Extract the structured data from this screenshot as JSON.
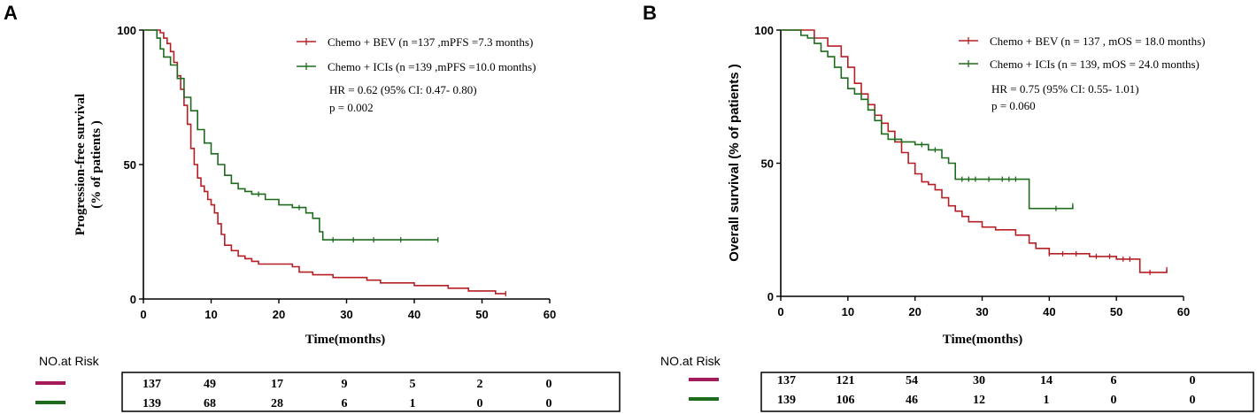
{
  "colors": {
    "bev": "#b51f24",
    "ici": "#1e6b1e",
    "bev_risk": "#a51a5a",
    "ici_risk": "#1e6b1e"
  },
  "chart_data": [
    {
      "panel": "A",
      "type": "line",
      "subtype": "kaplan-meier",
      "xlabel": "Time(months)",
      "ylabel_line1": "Progression-free survival",
      "ylabel_line2": "(% of patients )",
      "xlim": [
        0,
        60
      ],
      "ylim": [
        0,
        100
      ],
      "x_ticks": [
        "0",
        "10",
        "20",
        "30",
        "40",
        "50",
        "60"
      ],
      "y_ticks": [
        "0",
        "50",
        "100"
      ],
      "legend": [
        {
          "name": "Chemo + BEV (n =137 ,mPFS =7.3 months)"
        },
        {
          "name": "Chemo + ICIs (n =139 ,mPFS =10.0 months)"
        }
      ],
      "stats": [
        "HR = 0.62 (95% CI: 0.47- 0.80)",
        "p = 0.002"
      ],
      "series": [
        {
          "name": "Chemo + BEV",
          "points": [
            [
              0,
              100
            ],
            [
              2,
              100
            ],
            [
              2.5,
              99
            ],
            [
              3,
              97
            ],
            [
              3.5,
              95
            ],
            [
              4,
              92
            ],
            [
              4.5,
              88
            ],
            [
              5,
              83
            ],
            [
              5.5,
              78
            ],
            [
              6,
              72
            ],
            [
              6.5,
              65
            ],
            [
              7,
              56
            ],
            [
              7.5,
              50
            ],
            [
              8,
              45
            ],
            [
              8.5,
              42
            ],
            [
              9,
              40
            ],
            [
              9.5,
              37
            ],
            [
              10,
              35
            ],
            [
              10.5,
              32
            ],
            [
              11,
              28
            ],
            [
              11.5,
              24
            ],
            [
              12,
              20
            ],
            [
              13,
              18
            ],
            [
              14,
              16
            ],
            [
              15,
              15
            ],
            [
              16,
              14
            ],
            [
              17,
              13
            ],
            [
              20,
              13
            ],
            [
              22,
              12
            ],
            [
              23,
              10
            ],
            [
              25,
              9
            ],
            [
              28,
              8
            ],
            [
              33,
              7
            ],
            [
              35,
              6
            ],
            [
              40,
              5
            ],
            [
              45,
              4
            ],
            [
              48,
              3
            ],
            [
              52,
              2
            ],
            [
              53.5,
              2
            ]
          ],
          "censors": [
            [
              53.5,
              2
            ]
          ]
        },
        {
          "name": "Chemo + ICIs",
          "points": [
            [
              0,
              100
            ],
            [
              1.5,
              100
            ],
            [
              2,
              97
            ],
            [
              2.5,
              93
            ],
            [
              3,
              90
            ],
            [
              4,
              87
            ],
            [
              5,
              82
            ],
            [
              6,
              75
            ],
            [
              7,
              70
            ],
            [
              8,
              63
            ],
            [
              9,
              58
            ],
            [
              10,
              54
            ],
            [
              11,
              50
            ],
            [
              12,
              46
            ],
            [
              13,
              43
            ],
            [
              14,
              41
            ],
            [
              15,
              40
            ],
            [
              16,
              39
            ],
            [
              18,
              37
            ],
            [
              20,
              35
            ],
            [
              22,
              34
            ],
            [
              24,
              32
            ],
            [
              25,
              30
            ],
            [
              26,
              25
            ],
            [
              26.5,
              22
            ],
            [
              43.5,
              22
            ]
          ],
          "censors": [
            [
              28,
              22
            ],
            [
              31,
              22
            ],
            [
              34,
              22
            ],
            [
              38,
              22
            ],
            [
              43.5,
              22
            ],
            [
              17,
              39
            ],
            [
              23,
              34
            ]
          ]
        }
      ],
      "at_risk": {
        "title": "NO.at Risk",
        "rows": [
          [
            "137",
            "49",
            "17",
            "9",
            "5",
            "2",
            "0"
          ],
          [
            "139",
            "68",
            "28",
            "6",
            "1",
            "0",
            "0"
          ]
        ]
      }
    },
    {
      "panel": "B",
      "type": "line",
      "subtype": "kaplan-meier",
      "xlabel": "Time(months)",
      "ylabel": "Overall survival (% of patients )",
      "xlim": [
        0,
        60
      ],
      "ylim": [
        0,
        100
      ],
      "x_ticks": [
        "0",
        "10",
        "20",
        "30",
        "40",
        "50",
        "60"
      ],
      "y_ticks": [
        "0",
        "50",
        "100"
      ],
      "legend": [
        {
          "name": "Chemo + BEV (n = 137 , mOS = 18.0 months)"
        },
        {
          "name": "Chemo + ICIs (n = 139, mOS = 24.0 months)"
        }
      ],
      "stats": [
        "HR = 0.75 (95% CI: 0.55- 1.01)",
        "p = 0.060"
      ],
      "series": [
        {
          "name": "Chemo + BEV",
          "points": [
            [
              0,
              100
            ],
            [
              3,
              100
            ],
            [
              5,
              97
            ],
            [
              7,
              94
            ],
            [
              9,
              90
            ],
            [
              10,
              86
            ],
            [
              11,
              80
            ],
            [
              12,
              76
            ],
            [
              13,
              72
            ],
            [
              14,
              68
            ],
            [
              15,
              65
            ],
            [
              16,
              62
            ],
            [
              17,
              58
            ],
            [
              18,
              54
            ],
            [
              19,
              50
            ],
            [
              20,
              46
            ],
            [
              21,
              43
            ],
            [
              22,
              42
            ],
            [
              23,
              40
            ],
            [
              24,
              37
            ],
            [
              25,
              34
            ],
            [
              26,
              32
            ],
            [
              27,
              30
            ],
            [
              28,
              28
            ],
            [
              30,
              26
            ],
            [
              32,
              25
            ],
            [
              35,
              23
            ],
            [
              37,
              20
            ],
            [
              38,
              18
            ],
            [
              40,
              16
            ],
            [
              43,
              16
            ],
            [
              46,
              15
            ],
            [
              50,
              14
            ],
            [
              53,
              14
            ],
            [
              53.5,
              9
            ],
            [
              57.5,
              9
            ],
            [
              57.5,
              10
            ]
          ],
          "censors": [
            [
              40,
              16
            ],
            [
              42,
              16
            ],
            [
              44,
              16
            ],
            [
              47,
              15
            ],
            [
              49,
              15
            ],
            [
              51,
              14
            ],
            [
              52,
              14
            ],
            [
              55,
              9
            ],
            [
              57.5,
              10
            ]
          ]
        },
        {
          "name": "Chemo + ICIs",
          "points": [
            [
              0,
              100
            ],
            [
              2,
              100
            ],
            [
              3,
              98
            ],
            [
              4,
              97
            ],
            [
              5,
              95
            ],
            [
              6,
              92
            ],
            [
              7,
              90
            ],
            [
              8,
              86
            ],
            [
              9,
              82
            ],
            [
              10,
              78
            ],
            [
              11,
              76
            ],
            [
              12,
              74
            ],
            [
              13,
              70
            ],
            [
              14,
              66
            ],
            [
              15,
              61
            ],
            [
              16,
              59
            ],
            [
              18,
              58
            ],
            [
              20,
              57
            ],
            [
              22,
              55
            ],
            [
              24,
              52
            ],
            [
              25,
              50
            ],
            [
              26,
              44
            ],
            [
              37,
              44
            ],
            [
              37,
              33
            ],
            [
              43.5,
              33
            ],
            [
              43.5,
              34
            ]
          ],
          "censors": [
            [
              27,
              44
            ],
            [
              28,
              44
            ],
            [
              29,
              44
            ],
            [
              31,
              44
            ],
            [
              33,
              44
            ],
            [
              34,
              44
            ],
            [
              35,
              44
            ],
            [
              17,
              59
            ],
            [
              21,
              57
            ],
            [
              23,
              55
            ],
            [
              41,
              33
            ],
            [
              43.5,
              34
            ]
          ]
        }
      ],
      "at_risk": {
        "title": "NO.at Risk",
        "rows": [
          [
            "137",
            "121",
            "54",
            "30",
            "14",
            "6",
            "0"
          ],
          [
            "139",
            "106",
            "46",
            "12",
            "1",
            "0",
            "0"
          ]
        ]
      }
    }
  ]
}
